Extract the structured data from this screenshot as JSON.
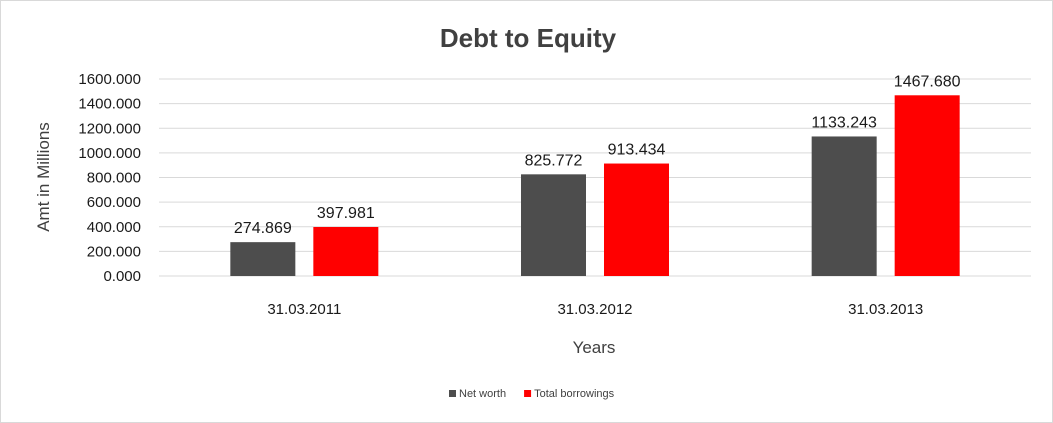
{
  "chart_data": {
    "type": "bar",
    "title": "Debt to Equity",
    "xlabel": "Years",
    "ylabel": "Amt in Millions",
    "categories": [
      "31.03.2011",
      "31.03.2012",
      "31.03.2013"
    ],
    "series": [
      {
        "name": "Net worth",
        "color": "#4d4d4d",
        "values": [
          274.869,
          825.772,
          1133.243
        ]
      },
      {
        "name": "Total borrowings",
        "color": "#ff0000",
        "values": [
          397.981,
          913.434,
          1467.68
        ]
      }
    ],
    "ylim": [
      0,
      1600
    ],
    "yticks": [
      0,
      200,
      400,
      600,
      800,
      1000,
      1200,
      1400,
      1600
    ],
    "ytick_labels": [
      "0.000",
      "200.000",
      "400.000",
      "600.000",
      "800.000",
      "1000.000",
      "1200.000",
      "1400.000",
      "1600.000"
    ],
    "data_labels": [
      [
        "274.869",
        "825.772",
        "1133.243"
      ],
      [
        "397.981",
        "913.434",
        "1467.680"
      ]
    ],
    "grid": true,
    "legend": "bottom"
  }
}
